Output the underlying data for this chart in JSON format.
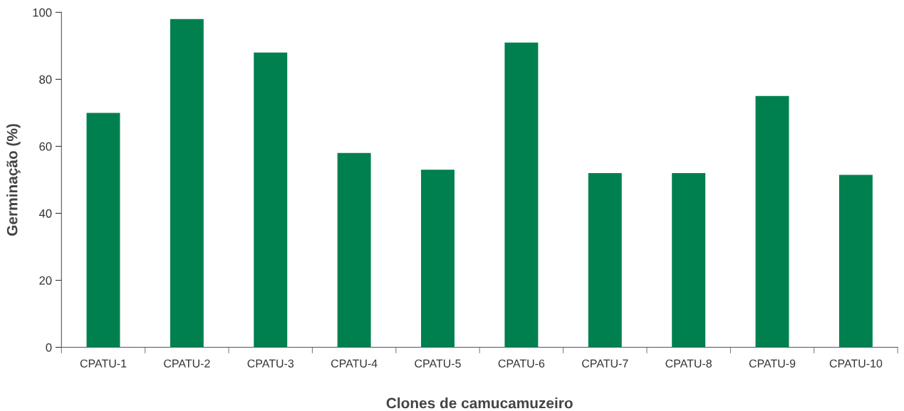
{
  "chart_data": {
    "type": "bar",
    "xlabel": "Clones de camucamuzeiro",
    "ylabel": "Germinação (%)",
    "categories": [
      "CPATU-1",
      "CPATU-2",
      "CPATU-3",
      "CPATU-4",
      "CPATU-5",
      "CPATU-6",
      "CPATU-7",
      "CPATU-8",
      "CPATU-9",
      "CPATU-10"
    ],
    "values": [
      70,
      98,
      88,
      58,
      53,
      91,
      52,
      52,
      75,
      51.5
    ],
    "color": "#00804f",
    "ylim": [
      0,
      100
    ],
    "yticks": [
      0,
      20,
      40,
      60,
      80,
      100
    ],
    "grid": false,
    "legend": false
  }
}
